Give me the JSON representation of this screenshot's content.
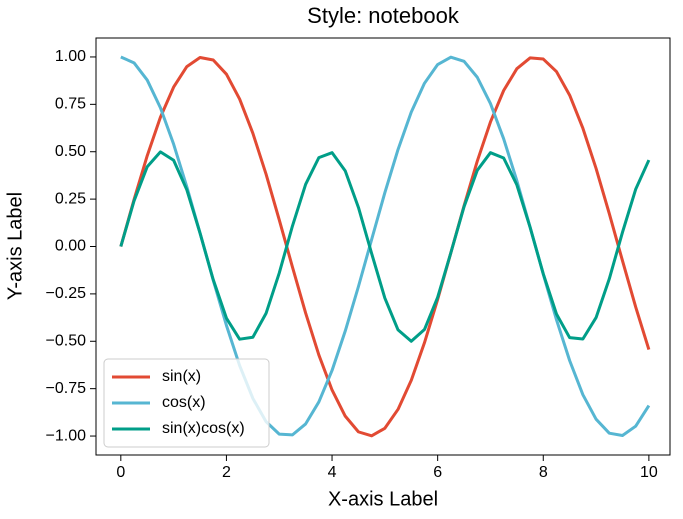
{
  "chart_data": {
    "type": "line",
    "title": "Style: notebook",
    "xlabel": "X-axis Label",
    "ylabel": "Y-axis Label",
    "x": [
      0,
      0.25,
      0.5,
      0.75,
      1,
      1.25,
      1.5,
      1.75,
      2,
      2.25,
      2.5,
      2.75,
      3,
      3.25,
      3.5,
      3.75,
      4,
      4.25,
      4.5,
      4.75,
      5,
      5.25,
      5.5,
      5.75,
      6,
      6.25,
      6.5,
      6.75,
      7,
      7.25,
      7.5,
      7.75,
      8,
      8.25,
      8.5,
      8.75,
      9,
      9.25,
      9.5,
      9.75,
      10
    ],
    "series": [
      {
        "name": "sin(x)",
        "color": "#e24a33",
        "values": [
          0,
          0.247,
          0.479,
          0.682,
          0.841,
          0.949,
          0.997,
          0.984,
          0.909,
          0.778,
          0.598,
          0.382,
          0.141,
          -0.108,
          -0.351,
          -0.572,
          -0.757,
          -0.895,
          -0.978,
          -0.999,
          -0.959,
          -0.859,
          -0.706,
          -0.508,
          -0.279,
          -0.033,
          0.215,
          0.45,
          0.657,
          0.823,
          0.938,
          0.995,
          0.989,
          0.923,
          0.798,
          0.624,
          0.412,
          0.174,
          -0.075,
          -0.319,
          -0.544
        ]
      },
      {
        "name": "cos(x)",
        "color": "#56b6d2",
        "values": [
          1,
          0.969,
          0.878,
          0.732,
          0.54,
          0.315,
          0.071,
          -0.178,
          -0.416,
          -0.628,
          -0.801,
          -0.924,
          -0.99,
          -0.994,
          -0.936,
          -0.82,
          -0.654,
          -0.446,
          -0.211,
          0.037,
          0.284,
          0.512,
          0.709,
          0.861,
          0.96,
          0.999,
          0.977,
          0.893,
          0.754,
          0.568,
          0.347,
          0.103,
          -0.146,
          -0.386,
          -0.602,
          -0.782,
          -0.911,
          -0.985,
          -0.997,
          -0.948,
          -0.839
        ]
      },
      {
        "name": "sin(x)cos(x)",
        "color": "#009e88",
        "values": [
          0,
          0.24,
          0.421,
          0.499,
          0.455,
          0.299,
          0.071,
          -0.175,
          -0.378,
          -0.489,
          -0.479,
          -0.353,
          -0.14,
          0.108,
          0.328,
          0.469,
          0.495,
          0.399,
          0.206,
          -0.037,
          -0.272,
          -0.44,
          -0.5,
          -0.438,
          -0.268,
          -0.033,
          0.21,
          0.402,
          0.495,
          0.467,
          0.325,
          0.102,
          -0.144,
          -0.356,
          -0.481,
          -0.488,
          -0.375,
          -0.171,
          0.075,
          0.302,
          0.456
        ]
      }
    ],
    "xlim": [
      -0.47,
      10.4
    ],
    "ylim": [
      -1.1,
      1.1
    ],
    "xticks": [
      0,
      2,
      4,
      6,
      8,
      10
    ],
    "yticks": [
      {
        "value": -1,
        "label": "−1.00"
      },
      {
        "value": -0.75,
        "label": "−0.75"
      },
      {
        "value": -0.5,
        "label": "−0.50"
      },
      {
        "value": -0.25,
        "label": "−0.25"
      },
      {
        "value": 0,
        "label": "0.00"
      },
      {
        "value": 0.25,
        "label": "0.25"
      },
      {
        "value": 0.5,
        "label": "0.50"
      },
      {
        "value": 0.75,
        "label": "0.75"
      },
      {
        "value": 1,
        "label": "1.00"
      }
    ],
    "grid": false,
    "legend": "lower left"
  }
}
